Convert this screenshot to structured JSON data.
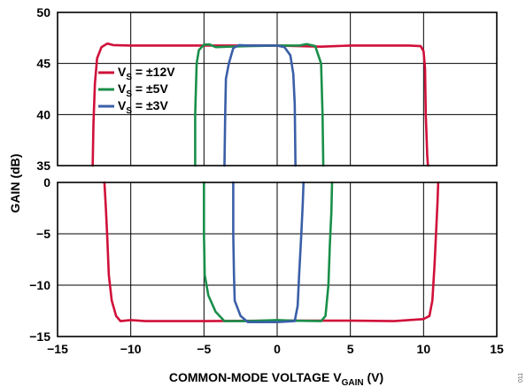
{
  "chart_data": [
    {
      "type": "line",
      "xlim": [
        -15,
        15
      ],
      "ylim": [
        35,
        50
      ],
      "y_ticks": [
        35,
        40,
        45,
        50
      ],
      "grid": true,
      "legend_placement": "upper-left",
      "series": [
        {
          "name_parts": [
            "V",
            "S",
            " = ±12V"
          ],
          "color": "#d0103a",
          "points": [
            [
              -12.6,
              35.0
            ],
            [
              -12.55,
              39.0
            ],
            [
              -12.45,
              43.0
            ],
            [
              -12.3,
              45.5
            ],
            [
              -12.0,
              46.6
            ],
            [
              -11.6,
              46.95
            ],
            [
              -11.2,
              46.8
            ],
            [
              -10.0,
              46.75
            ],
            [
              -5.0,
              46.75
            ],
            [
              0.0,
              46.75
            ],
            [
              3.0,
              46.65
            ],
            [
              5.0,
              46.75
            ],
            [
              9.0,
              46.75
            ],
            [
              9.8,
              46.7
            ],
            [
              10.0,
              46.2
            ],
            [
              10.1,
              44.5
            ],
            [
              10.15,
              40.0
            ],
            [
              10.25,
              36.0
            ],
            [
              10.3,
              35.0
            ]
          ]
        },
        {
          "name_parts": [
            "V",
            "S",
            " = ±5V"
          ],
          "color": "#1a8f4a",
          "points": [
            [
              -5.6,
              35.0
            ],
            [
              -5.6,
              40.0
            ],
            [
              -5.5,
              45.0
            ],
            [
              -5.35,
              46.3
            ],
            [
              -5.0,
              46.85
            ],
            [
              -4.6,
              46.85
            ],
            [
              -4.2,
              46.6
            ],
            [
              -2.0,
              46.7
            ],
            [
              0.0,
              46.75
            ],
            [
              1.5,
              46.75
            ],
            [
              2.0,
              46.9
            ],
            [
              2.6,
              46.7
            ],
            [
              3.0,
              45.0
            ],
            [
              3.1,
              40.0
            ],
            [
              3.15,
              35.0
            ]
          ]
        },
        {
          "name_parts": [
            "V",
            "S",
            " = ±3V"
          ],
          "color": "#3a5fa8",
          "points": [
            [
              -3.6,
              35.0
            ],
            [
              -3.55,
              40.0
            ],
            [
              -3.5,
              43.5
            ],
            [
              -3.3,
              45.0
            ],
            [
              -3.0,
              46.5
            ],
            [
              -2.6,
              46.8
            ],
            [
              -2.0,
              46.75
            ],
            [
              0.0,
              46.75
            ],
            [
              0.5,
              46.6
            ],
            [
              0.9,
              45.8
            ],
            [
              1.1,
              44.0
            ],
            [
              1.2,
              41.0
            ],
            [
              1.25,
              35.0
            ]
          ]
        }
      ]
    },
    {
      "type": "line",
      "xlim": [
        -15,
        15
      ],
      "ylim": [
        -15,
        0
      ],
      "x_ticks": [
        -15,
        -10,
        -5,
        0,
        5,
        10,
        15
      ],
      "y_ticks": [
        -15,
        -10,
        -5,
        0
      ],
      "grid": true,
      "series": [
        {
          "color": "#d0103a",
          "points": [
            [
              -11.8,
              0.0
            ],
            [
              -11.7,
              -2.5
            ],
            [
              -11.6,
              -5.5
            ],
            [
              -11.5,
              -9.0
            ],
            [
              -11.3,
              -11.5
            ],
            [
              -11.0,
              -13.0
            ],
            [
              -10.7,
              -13.5
            ],
            [
              -10.0,
              -13.4
            ],
            [
              -9.0,
              -13.5
            ],
            [
              -5.0,
              -13.5
            ],
            [
              0.0,
              -13.45
            ],
            [
              5.0,
              -13.45
            ],
            [
              8.0,
              -13.5
            ],
            [
              10.0,
              -13.3
            ],
            [
              10.4,
              -13.0
            ],
            [
              10.6,
              -11.5
            ],
            [
              10.75,
              -8.0
            ],
            [
              10.85,
              -5.0
            ],
            [
              10.95,
              -2.0
            ],
            [
              11.0,
              0.0
            ]
          ]
        },
        {
          "color": "#1a8f4a",
          "points": [
            [
              -5.0,
              0.0
            ],
            [
              -5.0,
              -5.0
            ],
            [
              -4.95,
              -9.0
            ],
            [
              -4.7,
              -11.0
            ],
            [
              -4.2,
              -12.6
            ],
            [
              -3.6,
              -13.5
            ],
            [
              -2.0,
              -13.5
            ],
            [
              0.0,
              -13.4
            ],
            [
              1.0,
              -13.45
            ],
            [
              3.0,
              -13.5
            ],
            [
              3.3,
              -13.0
            ],
            [
              3.5,
              -10.0
            ],
            [
              3.6,
              -6.0
            ],
            [
              3.7,
              -3.0
            ],
            [
              3.75,
              0.0
            ]
          ]
        },
        {
          "color": "#3a5fa8",
          "points": [
            [
              -3.0,
              0.0
            ],
            [
              -3.0,
              -5.0
            ],
            [
              -2.95,
              -9.0
            ],
            [
              -2.9,
              -11.5
            ],
            [
              -2.5,
              -13.0
            ],
            [
              -2.0,
              -13.6
            ],
            [
              0.0,
              -13.6
            ],
            [
              1.2,
              -13.5
            ],
            [
              1.4,
              -12.0
            ],
            [
              1.5,
              -9.0
            ],
            [
              1.65,
              -5.0
            ],
            [
              1.75,
              -2.0
            ],
            [
              1.8,
              0.0
            ]
          ]
        }
      ]
    }
  ],
  "xlabel_parts": [
    "COMMON-MODE VOLTAGE V",
    "GAIN",
    " (V)"
  ],
  "ylabel": "GAIN (dB)",
  "figure_id": "011"
}
